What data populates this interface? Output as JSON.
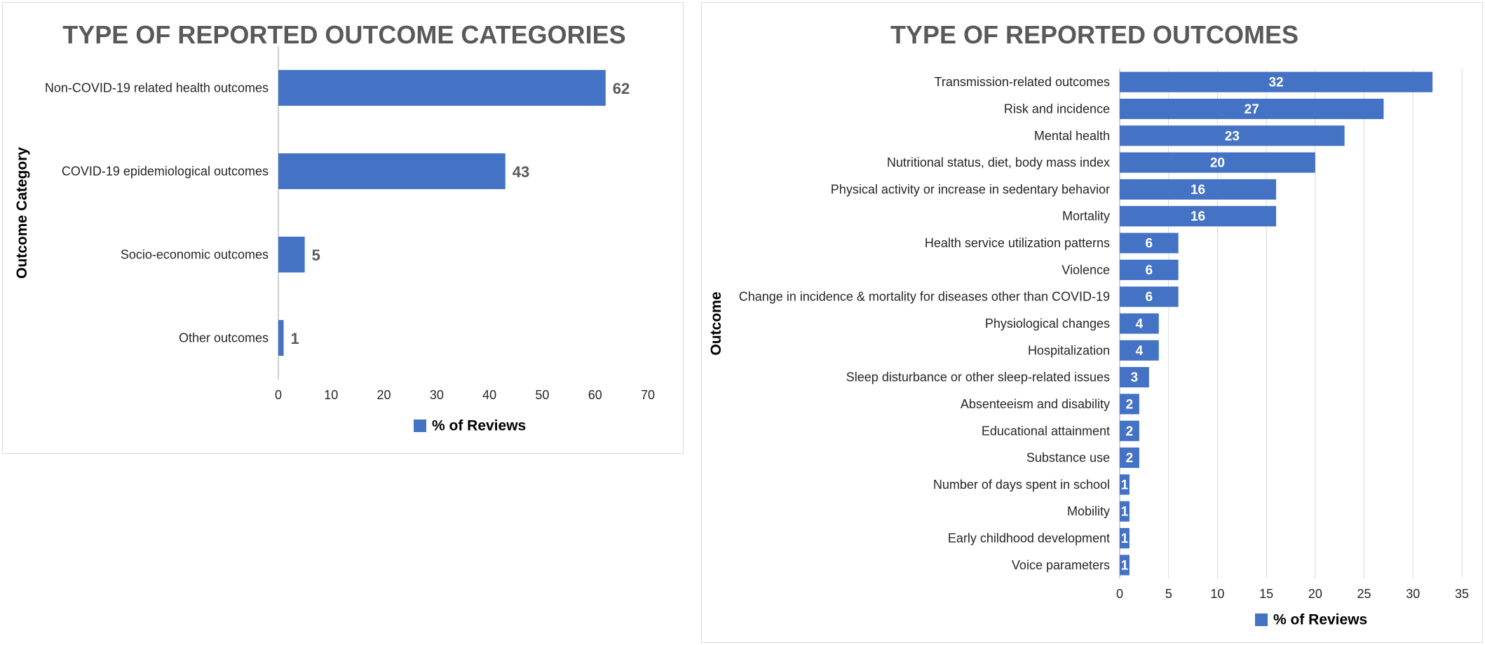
{
  "chart_data": [
    {
      "type": "bar",
      "orientation": "horizontal",
      "title": "TYPE OF REPORTED OUTCOME CATEGORIES",
      "ylabel": "Outcome Category",
      "xlabel": "",
      "categories": [
        "Non-COVID-19 related health outcomes",
        "COVID-19 epidemiological outcomes",
        "Socio-economic outcomes",
        "Other outcomes"
      ],
      "series": [
        {
          "name": "% of Reviews",
          "values": [
            62,
            43,
            5,
            1
          ]
        }
      ],
      "xlim": [
        0,
        70
      ],
      "xticks": [
        0,
        10,
        20,
        30,
        40,
        50,
        60,
        70
      ],
      "grid": false,
      "legend": "bottom",
      "data_labels": "outside",
      "bar_color": "#4472c4"
    },
    {
      "type": "bar",
      "orientation": "horizontal",
      "title": "TYPE OF REPORTED OUTCOMES",
      "ylabel": "Outcome",
      "xlabel": "",
      "categories": [
        "Transmission-related outcomes",
        "Risk and incidence",
        "Mental health",
        "Nutritional status, diet, body mass index",
        "Physical activity or increase in sedentary behavior",
        "Mortality",
        "Health service utilization patterns",
        "Violence",
        "Change in incidence & mortality for diseases other than COVID-19",
        "Physiological changes",
        "Hospitalization",
        "Sleep disturbance or other sleep-related issues",
        "Absenteeism and disability",
        "Educational attainment",
        "Substance use",
        "Number of days spent in school",
        "Mobility",
        "Early childhood development",
        "Voice parameters"
      ],
      "series": [
        {
          "name": "% of Reviews",
          "values": [
            32,
            27,
            23,
            20,
            16,
            16,
            6,
            6,
            6,
            4,
            4,
            3,
            2,
            2,
            2,
            1,
            1,
            1,
            1
          ]
        }
      ],
      "xlim": [
        0,
        35
      ],
      "xticks": [
        0,
        5,
        10,
        15,
        20,
        25,
        30,
        35
      ],
      "grid": true,
      "legend": "bottom",
      "data_labels": "inside",
      "bar_color": "#4472c4"
    }
  ]
}
